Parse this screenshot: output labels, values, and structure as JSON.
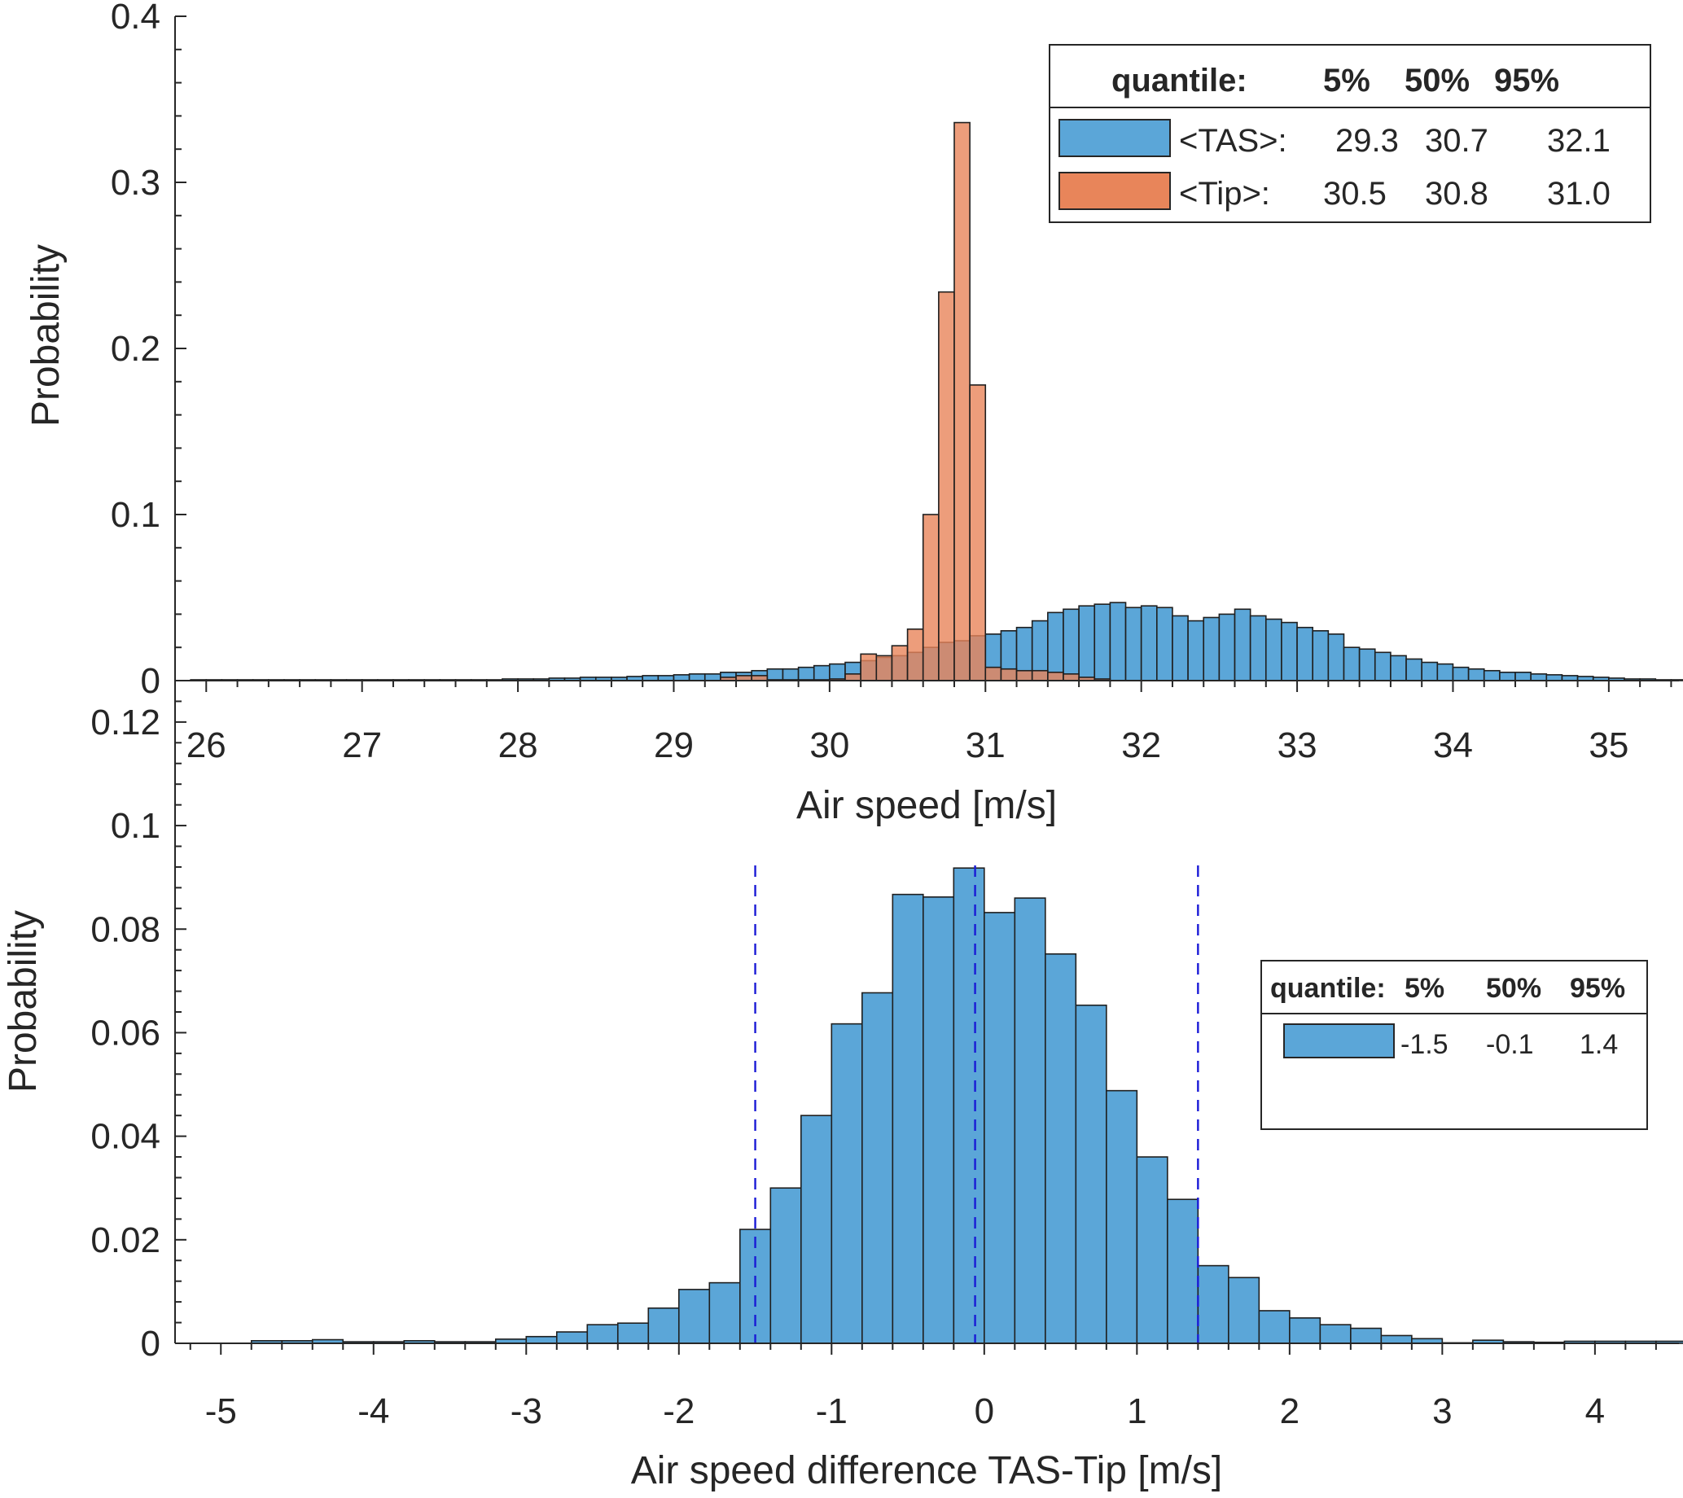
{
  "chart_data": [
    {
      "type": "bar",
      "xlabel": "Air speed [m/s]",
      "ylabel": "Probability",
      "xlim": [
        25.8,
        35.45
      ],
      "ylim": [
        0,
        0.4
      ],
      "x_ticks": [
        "26",
        "27",
        "28",
        "29",
        "30",
        "31",
        "32",
        "33",
        "34",
        "35"
      ],
      "y_ticks": [
        "0",
        "0.1",
        "0.2",
        "0.3",
        "0.4"
      ],
      "bin_width": 0.1,
      "legend": {
        "placement": "top-right",
        "header": [
          "quantile:",
          "5%",
          "50%",
          "95%"
        ],
        "entries": [
          {
            "name": "<TAS>:",
            "values": [
              "29.3",
              "30.7",
              "32.1"
            ]
          },
          {
            "name": "<Tip>:",
            "values": [
              "30.5",
              "30.8",
              "31.0"
            ]
          }
        ]
      },
      "series": [
        {
          "name": "<TAS>",
          "color": "#5ba6d8",
          "bin_start": 25.9,
          "values": [
            0.0005,
            0.0005,
            0.0005,
            0.0005,
            0.0005,
            0.0005,
            0.0005,
            0.0005,
            0.0005,
            0.0005,
            0.0005,
            0.0005,
            0.0005,
            0.0005,
            0.0005,
            0.0005,
            0.0005,
            0.0005,
            0.0005,
            0.0005,
            0.001,
            0.001,
            0.001,
            0.0015,
            0.0015,
            0.002,
            0.002,
            0.002,
            0.0025,
            0.003,
            0.003,
            0.0035,
            0.004,
            0.004,
            0.005,
            0.005,
            0.006,
            0.007,
            0.007,
            0.008,
            0.009,
            0.01,
            0.011,
            0.012,
            0.014,
            0.015,
            0.017,
            0.02,
            0.023,
            0.024,
            0.027,
            0.028,
            0.03,
            0.032,
            0.036,
            0.041,
            0.043,
            0.045,
            0.046,
            0.047,
            0.044,
            0.045,
            0.044,
            0.039,
            0.036,
            0.038,
            0.04,
            0.043,
            0.039,
            0.037,
            0.035,
            0.032,
            0.03,
            0.028,
            0.02,
            0.019,
            0.017,
            0.015,
            0.013,
            0.011,
            0.01,
            0.008,
            0.007,
            0.006,
            0.005,
            0.005,
            0.004,
            0.0035,
            0.003,
            0.0025,
            0.002,
            0.0015,
            0.001,
            0.001,
            0.0005,
            0.0005,
            0.0005,
            0.0005,
            0.0005,
            0.0005,
            0.0005,
            0.0005,
            0.0005,
            0.0005,
            0.0005,
            0.0005,
            0.0005,
            0.0005,
            0.0005,
            0.0005,
            0.0005,
            0.0005,
            0.0005,
            0.0005,
            0.0005,
            0.0005,
            0.0005,
            0.0005,
            0.0005,
            0.0005
          ]
        },
        {
          "name": "<Tip>",
          "color": "#e8855a",
          "bin_start": 29.3,
          "values": [
            0.002,
            0.003,
            0.003,
            0.0005,
            0.0005,
            0.0005,
            0.0005,
            0.001,
            0.004,
            0.016,
            0.015,
            0.021,
            0.031,
            0.1,
            0.234,
            0.336,
            0.178,
            0.008,
            0.007,
            0.006,
            0.006,
            0.005,
            0.004,
            0.002,
            0.001
          ]
        }
      ]
    },
    {
      "type": "bar",
      "xlabel": "Air speed difference TAS-Tip [m/s]",
      "ylabel": "Probability",
      "xlim": [
        -5.3,
        4.55
      ],
      "ylim": [
        0,
        0.128
      ],
      "x_ticks": [
        "-5",
        "-4",
        "-3",
        "-2",
        "-1",
        "0",
        "1",
        "2",
        "3",
        "4"
      ],
      "y_ticks": [
        "0",
        "0.02",
        "0.04",
        "0.06",
        "0.08",
        "0.1",
        "0.12"
      ],
      "bin_width": 0.2,
      "quantile_lines": [
        -1.5,
        -0.06,
        1.4
      ],
      "legend": {
        "placement": "right",
        "header": [
          "quantile:",
          "5%",
          "50%",
          "95%"
        ],
        "entries": [
          {
            "name": "",
            "values": [
              "-1.5",
              "-0.1",
              "1.4"
            ]
          }
        ]
      },
      "series": [
        {
          "name": "TAS-Tip",
          "color": "#5ba6d8",
          "bin_start": -4.8,
          "values": [
            0.0005,
            0.0005,
            0.0007,
            0.0003,
            0.0003,
            0.0005,
            0.0003,
            0.0003,
            0.0008,
            0.0013,
            0.0022,
            0.0036,
            0.0039,
            0.0068,
            0.0104,
            0.0117,
            0.022,
            0.03,
            0.044,
            0.0617,
            0.0677,
            0.0867,
            0.0862,
            0.0918,
            0.0832,
            0.086,
            0.0752,
            0.0653,
            0.0488,
            0.036,
            0.0278,
            0.015,
            0.0127,
            0.0063,
            0.0049,
            0.0036,
            0.0029,
            0.0015,
            0.0009,
            0.0001,
            0.0006,
            0.0003,
            0.0002,
            0.0004,
            0.0004,
            0.0004,
            0.0004
          ]
        }
      ]
    }
  ]
}
